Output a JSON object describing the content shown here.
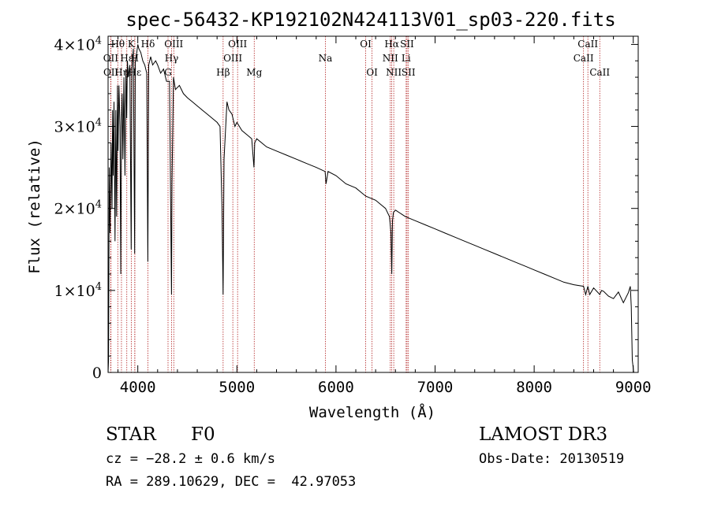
{
  "chart_data": {
    "type": "line",
    "title": "spec-56432-KP192102N424113V01_sp03-220.fits",
    "xlabel": "Wavelength (Å)",
    "ylabel": "Flux (relative)",
    "xlim": [
      3700,
      9050
    ],
    "ylim": [
      0,
      41000
    ],
    "x_ticks": [
      4000,
      5000,
      6000,
      7000,
      8000,
      9000
    ],
    "y_ticks": [
      {
        "value": 0,
        "mant": "0",
        "exp": ""
      },
      {
        "value": 10000,
        "mant": "1×10",
        "exp": "4"
      },
      {
        "value": 20000,
        "mant": "2×10",
        "exp": "4"
      },
      {
        "value": 30000,
        "mant": "3×10",
        "exp": "4"
      },
      {
        "value": 40000,
        "mant": "4×10",
        "exp": "4"
      }
    ],
    "series": [
      {
        "name": "flux",
        "x": [
          3700,
          3705,
          3712,
          3720,
          3730,
          3740,
          3745,
          3752,
          3760,
          3770,
          3778,
          3786,
          3795,
          3800,
          3810,
          3820,
          3828,
          3835,
          3842,
          3850,
          3860,
          3870,
          3880,
          3888,
          3895,
          3905,
          3920,
          3933,
          3940,
          3955,
          3968,
          3975,
          3990,
          4000,
          4010,
          4030,
          4050,
          4070,
          4090,
          4101,
          4110,
          4130,
          4150,
          4180,
          4200,
          4230,
          4260,
          4290,
          4320,
          4340,
          4345,
          4360,
          4380,
          4420,
          4460,
          4500,
          4550,
          4600,
          4650,
          4700,
          4750,
          4800,
          4830,
          4850,
          4861,
          4870,
          4900,
          4920,
          4950,
          4980,
          5000,
          5050,
          5100,
          5150,
          5172,
          5180,
          5200,
          5300,
          5400,
          5500,
          5600,
          5700,
          5800,
          5890,
          5900,
          5920,
          6000,
          6100,
          6200,
          6300,
          6400,
          6450,
          6500,
          6540,
          6555,
          6563,
          6570,
          6580,
          6600,
          6700,
          6800,
          6900,
          7000,
          7100,
          7200,
          7300,
          7400,
          7500,
          7600,
          7700,
          7800,
          7900,
          8000,
          8100,
          8200,
          8300,
          8400,
          8498,
          8520,
          8542,
          8560,
          8600,
          8662,
          8680,
          8700,
          8750,
          8800,
          8850,
          8900,
          8950,
          8970,
          8980,
          8985,
          8990,
          9000,
          9005
        ],
        "y": [
          0,
          1500,
          25000,
          17000,
          28000,
          20000,
          32000,
          24000,
          33000,
          16000,
          32000,
          19000,
          35000,
          27000,
          35000,
          30000,
          12000,
          31000,
          34000,
          26000,
          36000,
          24000,
          37000,
          31000,
          38000,
          36000,
          37500,
          15000,
          37000,
          39500,
          14500,
          38000,
          39000,
          40000,
          39500,
          39000,
          38000,
          37500,
          36500,
          13500,
          37500,
          38500,
          37500,
          38000,
          37500,
          36500,
          37000,
          35500,
          35500,
          9500,
          23000,
          36000,
          34500,
          35000,
          34000,
          33500,
          33000,
          32500,
          32000,
          31500,
          31000,
          30500,
          30000,
          20000,
          9500,
          26000,
          33000,
          32000,
          31500,
          30000,
          30500,
          29500,
          29000,
          28500,
          25000,
          28000,
          28500,
          27500,
          27000,
          26500,
          26000,
          25500,
          25000,
          24500,
          23000,
          24500,
          24000,
          23000,
          22500,
          21500,
          21000,
          20500,
          20000,
          19000,
          17000,
          12000,
          18500,
          19500,
          19800,
          19000,
          18500,
          18000,
          17500,
          17000,
          16500,
          16000,
          15500,
          15000,
          14500,
          14000,
          13500,
          13000,
          12500,
          12000,
          11500,
          11000,
          10700,
          10500,
          9500,
          10500,
          9500,
          10300,
          9500,
          10000,
          9900,
          9300,
          9000,
          9800,
          8500,
          9700,
          10500,
          8000,
          5000,
          1500,
          500,
          0
        ]
      }
    ],
    "lines": [
      {
        "label": "Hθ",
        "wl": 3798,
        "row": 0
      },
      {
        "label": "OII",
        "wl": 3727,
        "row": 1
      },
      {
        "label": "OII",
        "wl": 3729,
        "row": 2
      },
      {
        "label": "Hη",
        "wl": 3835,
        "row": 2
      },
      {
        "label": "Hε",
        "wl": 3889,
        "row": 1
      },
      {
        "label": "K",
        "wl": 3934,
        "row": 0
      },
      {
        "label": "H",
        "wl": 3969,
        "row": 1
      },
      {
        "label": "Hε",
        "wl": 3970,
        "row": 2
      },
      {
        "label": "Hδ",
        "wl": 4102,
        "row": 0
      },
      {
        "label": "OIII",
        "wl": 4363,
        "row": 0
      },
      {
        "label": "Hγ",
        "wl": 4341,
        "row": 1
      },
      {
        "label": "G",
        "wl": 4305,
        "row": 2
      },
      {
        "label": "Hβ",
        "wl": 4861,
        "row": 2
      },
      {
        "label": "OIII",
        "wl": 5007,
        "row": 0
      },
      {
        "label": "OIII",
        "wl": 4959,
        "row": 1
      },
      {
        "label": "Mg",
        "wl": 5175,
        "row": 2
      },
      {
        "label": "Na",
        "wl": 5893,
        "row": 1
      },
      {
        "label": "OI",
        "wl": 6300,
        "row": 0
      },
      {
        "label": "OI",
        "wl": 6364,
        "row": 2
      },
      {
        "label": "Hα",
        "wl": 6563,
        "row": 0
      },
      {
        "label": "NII",
        "wl": 6548,
        "row": 1
      },
      {
        "label": "NII",
        "wl": 6583,
        "row": 2
      },
      {
        "label": "SII",
        "wl": 6717,
        "row": 0
      },
      {
        "label": "Li",
        "wl": 6708,
        "row": 1
      },
      {
        "label": "SII",
        "wl": 6731,
        "row": 2
      },
      {
        "label": "CaII",
        "wl": 8542,
        "row": 0
      },
      {
        "label": "CaII",
        "wl": 8498,
        "row": 1
      },
      {
        "label": "CaII",
        "wl": 8662,
        "row": 2
      }
    ]
  },
  "info": {
    "class_label": "STAR",
    "subclass": "F0",
    "survey": "LAMOST DR3",
    "redshift": "cz = −28.2 ± 0.6 km/s",
    "obs_date": "Obs-Date: 20130519",
    "coords": "RA = 289.10629, DEC =  42.97053"
  },
  "colors": {
    "line": "#000000",
    "marker": "#b22222",
    "axis": "#000000"
  }
}
